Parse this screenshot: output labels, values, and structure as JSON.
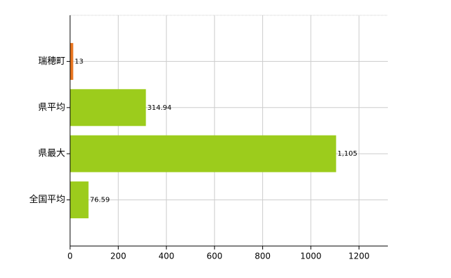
{
  "chart_data": {
    "type": "hbar",
    "categories": [
      "瑞穂町",
      "県平均",
      "県最大",
      "全国平均"
    ],
    "values": [
      13,
      314.94,
      1105,
      76.59
    ],
    "value_labels": [
      "13",
      "314.94",
      "1,105",
      "76.59"
    ],
    "colors": [
      "#e8741e",
      "#9ccc1c",
      "#9ccc1c",
      "#9ccc1c"
    ],
    "xlim": [
      0,
      1320
    ],
    "xticks": [
      0,
      200,
      400,
      600,
      800,
      1000,
      1200
    ],
    "grid": true
  }
}
